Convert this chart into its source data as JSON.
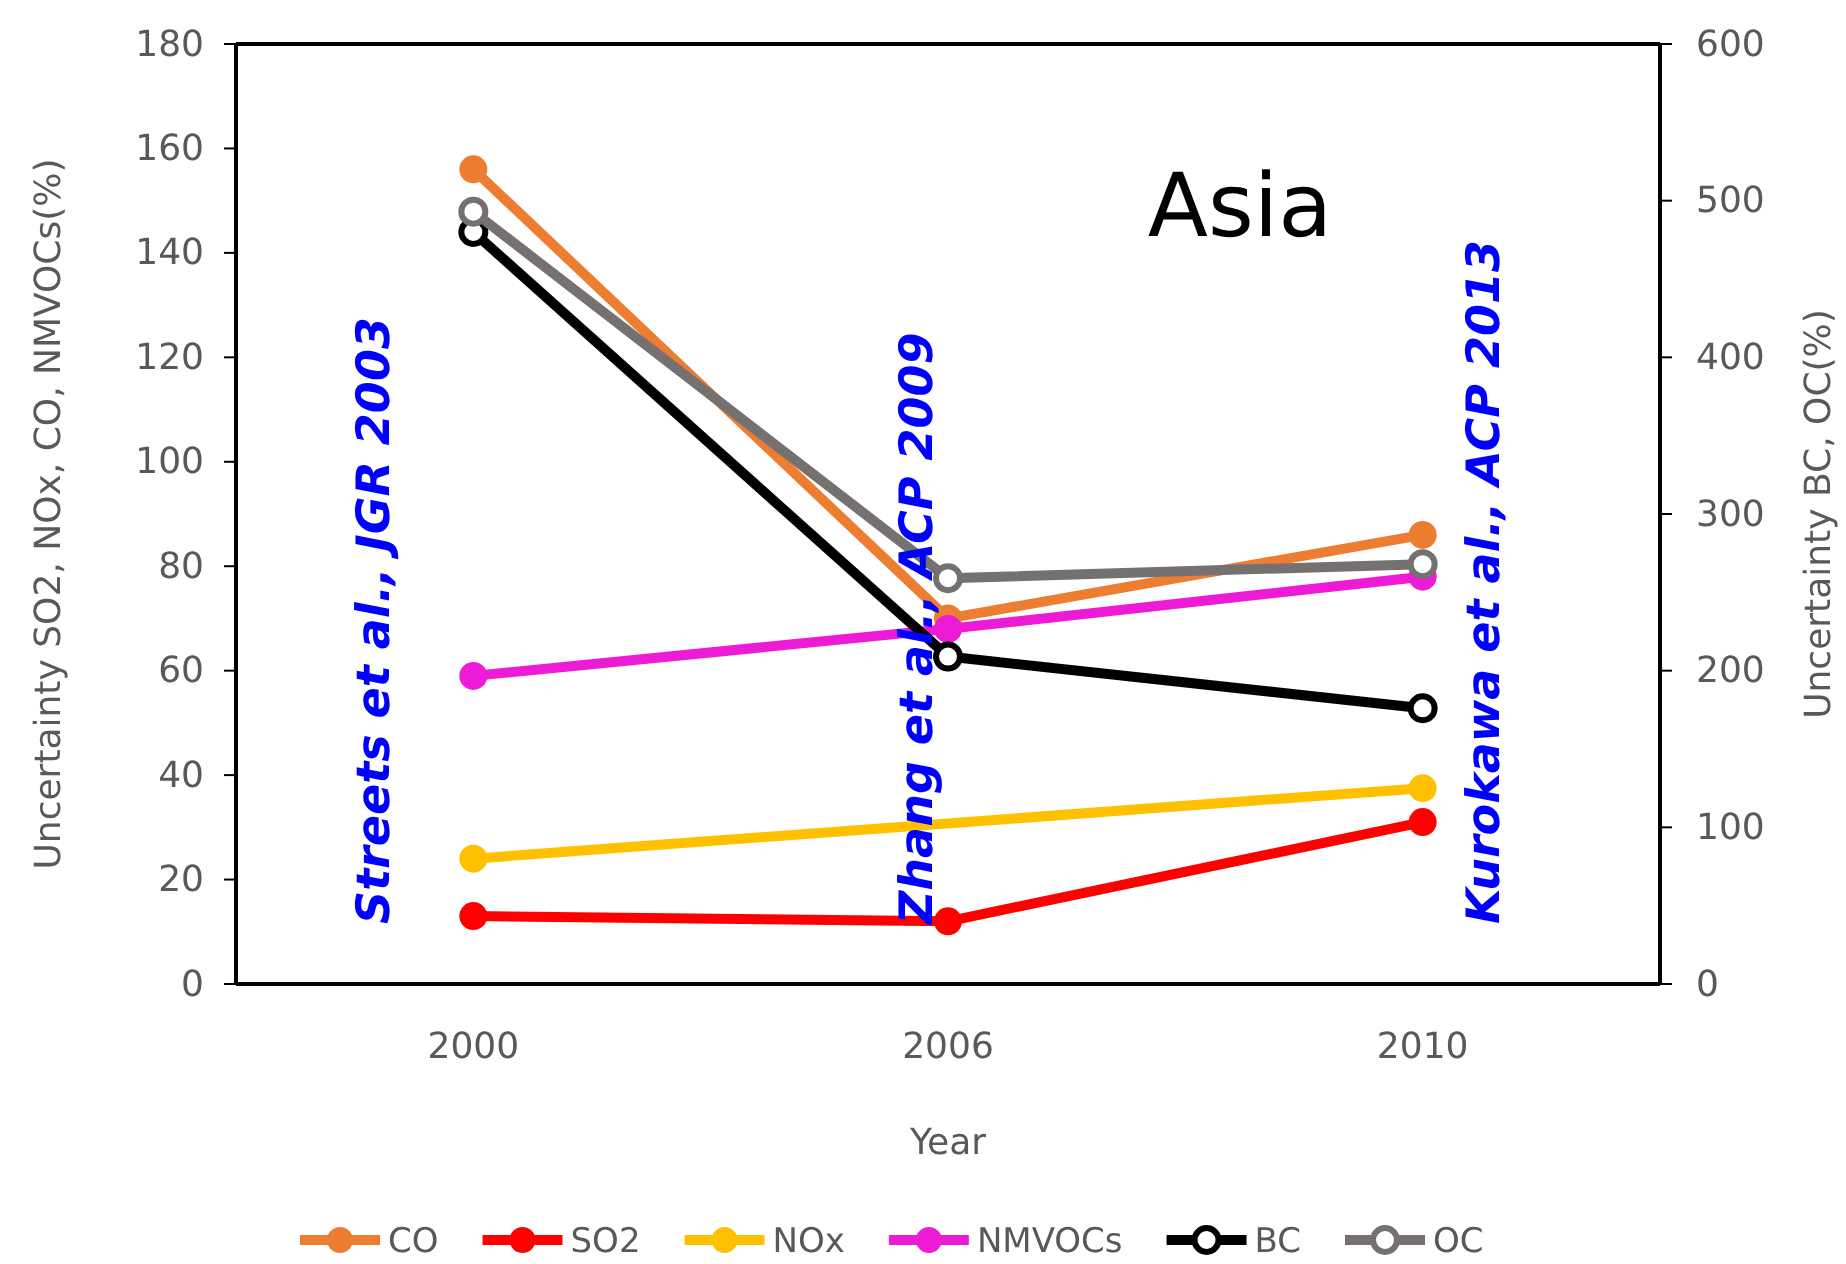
{
  "chart_data": {
    "type": "line",
    "categories": [
      "2000",
      "2006",
      "2010"
    ],
    "xlabel": "Year",
    "ylabel": "Uncertainty SO2, NOx, CO, NMVOCs(%)",
    "y2label": "Uncertainty   BC, OC(%)",
    "ylim": [
      0,
      180
    ],
    "yticks": [
      0,
      20,
      40,
      60,
      80,
      100,
      120,
      140,
      160,
      180
    ],
    "y2lim": [
      0,
      600
    ],
    "y2ticks": [
      0,
      100,
      200,
      300,
      400,
      500,
      600
    ],
    "series": [
      {
        "name": "CO",
        "color": "#ed7d31",
        "values": [
          156,
          70,
          86
        ]
      },
      {
        "name": "SO2",
        "color": "#ff0000",
        "values": [
          13,
          12,
          31
        ]
      },
      {
        "name": "NOx",
        "color": "#ffc000",
        "values": [
          24,
          null,
          37.5
        ]
      },
      {
        "name": "NMVOCs",
        "color": "#ee1bd6",
        "values": [
          59,
          68,
          78
        ]
      },
      {
        "name": "BC",
        "color": "#000000",
        "values": [
          480,
          209,
          176
        ],
        "axis": "y2"
      },
      {
        "name": "OC",
        "color": "#767171",
        "values": [
          493,
          259,
          268
        ],
        "axis": "y2"
      }
    ],
    "annotations": [
      "Asia",
      "Streets et al., JGR 2003",
      "Zhang et al., ACP 2009",
      "Kurokawa et al., ACP 2013"
    ],
    "marker": "circle",
    "legend": "bottom",
    "grid": false
  }
}
